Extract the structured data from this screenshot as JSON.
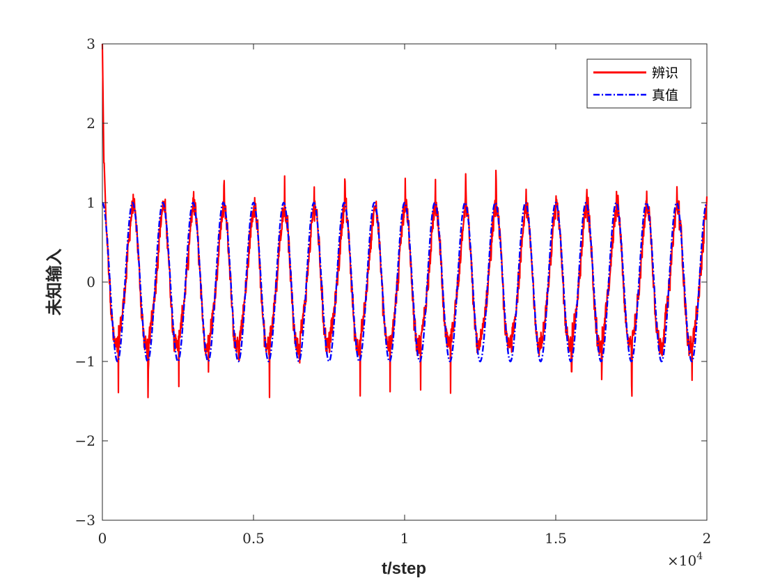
{
  "chart_data": {
    "type": "line",
    "title": "",
    "xlabel": "t/step",
    "ylabel": "未知输入",
    "x_exponent_label": "×10",
    "x_exponent_power": "4",
    "xlim": [
      0,
      20000
    ],
    "ylim": [
      -3,
      3
    ],
    "x_ticks": [
      0,
      5000,
      10000,
      15000,
      20000
    ],
    "x_tick_labels": [
      "0",
      "0.5",
      "1",
      "1.5",
      "2"
    ],
    "y_ticks": [
      -3,
      -2,
      -1,
      0,
      1,
      2,
      3
    ],
    "y_tick_labels": [
      "−3",
      "−2",
      "−1",
      "0",
      "1",
      "2",
      "3"
    ],
    "grid": false,
    "legend_position": "top-right",
    "series": [
      {
        "name": "辨识",
        "color": "#ff0000",
        "style": "solid",
        "description": "identified input; sinusoid of amplitude ~1 and period ~1000 steps with noisy overshoot; initial spike to 3 near t=0",
        "x_start": 0,
        "x_end": 20000,
        "initial_peak": 3.0,
        "peak_range": [
          1.0,
          1.48
        ],
        "trough_range": [
          -1.68,
          -0.85
        ]
      },
      {
        "name": "真值",
        "color": "#0000ff",
        "style": "dash-dot",
        "description": "true input; sin wave amplitude 1, period 1000 steps",
        "amplitude": 1,
        "period": 1000,
        "x_start": 0,
        "x_end": 20000
      }
    ]
  }
}
